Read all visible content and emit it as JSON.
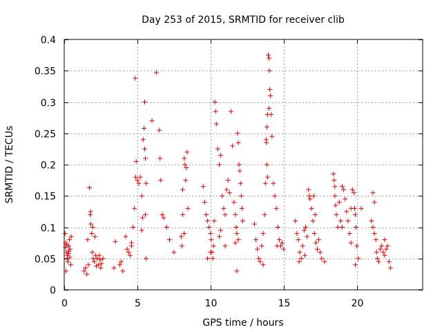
{
  "chart_data": {
    "type": "scatter",
    "title": "Day 253 of 2015, SRMTID for receiver clib",
    "xlabel": "GPS time / hours",
    "ylabel": "SRMTID / TECUs",
    "xlim": [
      0,
      24.5
    ],
    "ylim": [
      0,
      0.4
    ],
    "grid": true,
    "x_ticks": [
      0,
      5,
      10,
      15,
      20
    ],
    "x_tick_labels": [
      "0",
      "5",
      "10",
      "15",
      "20"
    ],
    "y_ticks": [
      0,
      0.05,
      0.1,
      0.15,
      0.2,
      0.25,
      0.3,
      0.35,
      0.4
    ],
    "y_tick_labels": [
      "0",
      "0.05",
      "0.1",
      "0.15",
      "0.2",
      "0.25",
      "0.3",
      "0.35",
      "0.4"
    ],
    "marker": "+",
    "marker_color": "#e00000",
    "series": [
      {
        "name": "SRMTID",
        "points": [
          [
            0.05,
            0.09
          ],
          [
            0.1,
            0.075
          ],
          [
            0.15,
            0.06
          ],
          [
            0.2,
            0.05
          ],
          [
            0.25,
            0.045
          ],
          [
            0.3,
            0.07
          ],
          [
            0.35,
            0.08
          ],
          [
            0.4,
            0.065
          ],
          [
            0.45,
            0.04
          ],
          [
            0.12,
            0.03
          ],
          [
            0.22,
            0.055
          ],
          [
            0.32,
            0.062
          ],
          [
            0.18,
            0.072
          ],
          [
            0.28,
            0.058
          ],
          [
            0.08,
            0.068
          ],
          [
            0.38,
            0.052
          ],
          [
            0.48,
            0.085
          ],
          [
            1.35,
            0.03
          ],
          [
            1.45,
            0.035
          ],
          [
            1.55,
            0.025
          ],
          [
            1.65,
            0.04
          ],
          [
            1.72,
            0.163
          ],
          [
            1.78,
            0.12
          ],
          [
            1.82,
            0.105
          ],
          [
            1.88,
            0.09
          ],
          [
            1.92,
            0.06
          ],
          [
            1.98,
            0.05
          ],
          [
            2.05,
            0.045
          ],
          [
            2.15,
            0.055
          ],
          [
            2.25,
            0.05
          ],
          [
            2.35,
            0.04
          ],
          [
            2.45,
            0.048
          ],
          [
            2.55,
            0.042
          ],
          [
            2.65,
            0.05
          ],
          [
            1.8,
            0.125
          ],
          [
            1.95,
            0.1
          ],
          [
            2.1,
            0.085
          ],
          [
            2.2,
            0.038
          ],
          [
            2.4,
            0.055
          ],
          [
            2.5,
            0.035
          ],
          [
            1.6,
            0.08
          ],
          [
            3.4,
            0.035
          ],
          [
            3.5,
            0.077
          ],
          [
            3.8,
            0.04
          ],
          [
            3.9,
            0.045
          ],
          [
            4.0,
            0.03
          ],
          [
            4.2,
            0.085
          ],
          [
            4.3,
            0.065
          ],
          [
            4.4,
            0.06
          ],
          [
            4.5,
            0.055
          ],
          [
            4.6,
            0.075
          ],
          [
            4.7,
            0.1
          ],
          [
            4.8,
            0.13
          ],
          [
            4.88,
            0.18
          ],
          [
            4.92,
            0.205
          ],
          [
            5.0,
            0.175
          ],
          [
            5.1,
            0.17
          ],
          [
            5.2,
            0.18
          ],
          [
            5.3,
            0.15
          ],
          [
            4.85,
            0.338
          ],
          [
            5.5,
            0.3
          ],
          [
            5.45,
            0.258
          ],
          [
            5.4,
            0.24
          ],
          [
            5.5,
            0.225
          ],
          [
            5.35,
            0.115
          ],
          [
            5.55,
            0.12
          ],
          [
            5.6,
            0.05
          ],
          [
            5.55,
            0.21
          ],
          [
            5.6,
            0.17
          ],
          [
            5.3,
            0.095
          ],
          [
            4.6,
            0.07
          ],
          [
            6.0,
            0.27
          ],
          [
            6.3,
            0.347
          ],
          [
            6.5,
            0.255
          ],
          [
            6.55,
            0.21
          ],
          [
            6.6,
            0.175
          ],
          [
            6.7,
            0.12
          ],
          [
            6.8,
            0.115
          ],
          [
            7.0,
            0.1
          ],
          [
            7.2,
            0.08
          ],
          [
            7.5,
            0.06
          ],
          [
            8.0,
            0.085
          ],
          [
            8.1,
            0.12
          ],
          [
            8.2,
            0.21
          ],
          [
            8.25,
            0.2
          ],
          [
            8.3,
            0.175
          ],
          [
            8.35,
            0.195
          ],
          [
            8.4,
            0.22
          ],
          [
            8.45,
            0.13
          ],
          [
            8.1,
            0.16
          ],
          [
            8.2,
            0.09
          ],
          [
            8.05,
            0.07
          ],
          [
            9.5,
            0.165
          ],
          [
            9.6,
            0.14
          ],
          [
            9.7,
            0.12
          ],
          [
            9.8,
            0.11
          ],
          [
            9.9,
            0.1
          ],
          [
            10.0,
            0.09
          ],
          [
            10.05,
            0.08
          ],
          [
            10.1,
            0.06
          ],
          [
            10.15,
            0.05
          ],
          [
            10.2,
            0.07
          ],
          [
            10.25,
            0.11
          ],
          [
            10.3,
            0.3
          ],
          [
            10.35,
            0.285
          ],
          [
            10.4,
            0.265
          ],
          [
            10.5,
            0.225
          ],
          [
            10.6,
            0.2
          ],
          [
            10.7,
            0.215
          ],
          [
            10.8,
            0.15
          ],
          [
            10.9,
            0.13
          ],
          [
            11.0,
            0.12
          ],
          [
            11.1,
            0.16
          ],
          [
            11.2,
            0.175
          ],
          [
            11.3,
            0.155
          ],
          [
            11.4,
            0.285
          ],
          [
            11.5,
            0.23
          ],
          [
            11.6,
            0.14
          ],
          [
            11.7,
            0.12
          ],
          [
            11.75,
            0.1
          ],
          [
            11.8,
            0.09
          ],
          [
            11.85,
            0.25
          ],
          [
            11.9,
            0.235
          ],
          [
            11.95,
            0.2
          ],
          [
            12.0,
            0.19
          ],
          [
            12.05,
            0.17
          ],
          [
            12.1,
            0.15
          ],
          [
            12.15,
            0.13
          ],
          [
            12.2,
            0.11
          ],
          [
            11.8,
            0.03
          ],
          [
            11.7,
            0.075
          ],
          [
            10.0,
            0.06
          ],
          [
            9.8,
            0.05
          ],
          [
            10.6,
            0.085
          ],
          [
            10.7,
            0.095
          ],
          [
            11.0,
            0.07
          ],
          [
            11.9,
            0.08
          ],
          [
            13.0,
            0.105
          ],
          [
            13.1,
            0.08
          ],
          [
            13.2,
            0.065
          ],
          [
            13.3,
            0.05
          ],
          [
            13.4,
            0.045
          ],
          [
            13.5,
            0.07
          ],
          [
            13.6,
            0.09
          ],
          [
            13.7,
            0.12
          ],
          [
            13.75,
            0.17
          ],
          [
            13.8,
            0.24
          ],
          [
            13.85,
            0.26
          ],
          [
            13.9,
            0.28
          ],
          [
            13.95,
            0.375
          ],
          [
            14.0,
            0.37
          ],
          [
            14.02,
            0.35
          ],
          [
            14.05,
            0.32
          ],
          [
            14.1,
            0.31
          ],
          [
            14.15,
            0.28
          ],
          [
            14.2,
            0.245
          ],
          [
            13.85,
            0.2
          ],
          [
            13.9,
            0.18
          ],
          [
            14.3,
            0.17
          ],
          [
            14.4,
            0.15
          ],
          [
            14.5,
            0.13
          ],
          [
            14.6,
            0.1
          ],
          [
            14.7,
            0.08
          ],
          [
            14.8,
            0.07
          ],
          [
            14.9,
            0.075
          ],
          [
            15.0,
            0.065
          ],
          [
            14.55,
            0.07
          ],
          [
            13.6,
            0.04
          ],
          [
            14.0,
            0.29
          ],
          [
            13.82,
            0.235
          ],
          [
            15.8,
            0.11
          ],
          [
            15.9,
            0.09
          ],
          [
            16.0,
            0.08
          ],
          [
            16.1,
            0.06
          ],
          [
            16.2,
            0.05
          ],
          [
            16.3,
            0.07
          ],
          [
            16.4,
            0.095
          ],
          [
            16.5,
            0.1
          ],
          [
            16.6,
            0.085
          ],
          [
            16.7,
            0.16
          ],
          [
            16.75,
            0.15
          ],
          [
            16.8,
            0.145
          ],
          [
            16.9,
            0.13
          ],
          [
            17.0,
            0.11
          ],
          [
            17.1,
            0.09
          ],
          [
            17.2,
            0.075
          ],
          [
            17.3,
            0.065
          ],
          [
            17.4,
            0.08
          ],
          [
            17.5,
            0.06
          ],
          [
            17.6,
            0.05
          ],
          [
            17.8,
            0.045
          ],
          [
            16.05,
            0.045
          ],
          [
            16.45,
            0.055
          ],
          [
            17.05,
            0.15
          ],
          [
            17.15,
            0.12
          ],
          [
            18.4,
            0.185
          ],
          [
            18.45,
            0.175
          ],
          [
            18.5,
            0.15
          ],
          [
            18.55,
            0.135
          ],
          [
            18.6,
            0.12
          ],
          [
            18.7,
            0.1
          ],
          [
            18.8,
            0.14
          ],
          [
            18.9,
            0.11
          ],
          [
            19.0,
            0.1
          ],
          [
            19.1,
            0.16
          ],
          [
            19.2,
            0.145
          ],
          [
            19.3,
            0.125
          ],
          [
            19.4,
            0.11
          ],
          [
            19.5,
            0.09
          ],
          [
            19.6,
            0.075
          ],
          [
            19.7,
            0.16
          ],
          [
            19.8,
            0.155
          ],
          [
            19.85,
            0.13
          ],
          [
            19.9,
            0.12
          ],
          [
            19.95,
            0.1
          ],
          [
            20.0,
            0.07
          ],
          [
            20.1,
            0.05
          ],
          [
            19.0,
            0.165
          ],
          [
            19.6,
            0.13
          ],
          [
            20.3,
            0.13
          ],
          [
            19.9,
            0.04
          ],
          [
            18.5,
            0.165
          ],
          [
            21.0,
            0.11
          ],
          [
            21.1,
            0.1
          ],
          [
            21.2,
            0.09
          ],
          [
            21.3,
            0.08
          ],
          [
            21.35,
            0.06
          ],
          [
            21.4,
            0.05
          ],
          [
            21.5,
            0.045
          ],
          [
            21.6,
            0.065
          ],
          [
            21.7,
            0.07
          ],
          [
            21.8,
            0.06
          ],
          [
            21.9,
            0.055
          ],
          [
            22.0,
            0.065
          ],
          [
            22.1,
            0.07
          ],
          [
            22.2,
            0.045
          ],
          [
            22.3,
            0.035
          ],
          [
            21.1,
            0.155
          ],
          [
            21.2,
            0.14
          ],
          [
            21.9,
            0.08
          ]
        ]
      }
    ]
  }
}
